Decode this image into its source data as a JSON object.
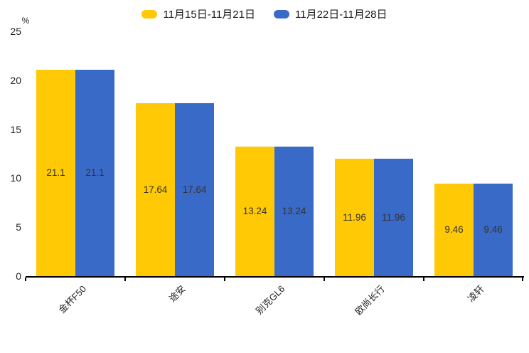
{
  "chart_data": {
    "type": "bar",
    "title": "",
    "categories": [
      "金杯F50",
      "途安",
      "别克GL6",
      "欧尚长行",
      "凌轩"
    ],
    "series": [
      {
        "name": "11月15日-11月21日",
        "color": "#FFC905",
        "values": [
          21.1,
          17.64,
          13.24,
          11.96,
          9.46
        ]
      },
      {
        "name": "11月22日-11月28日",
        "color": "#3A6AC8",
        "values": [
          21.1,
          17.64,
          13.24,
          11.96,
          9.46
        ]
      }
    ],
    "xlabel": "",
    "ylabel": "%",
    "ylim": [
      0,
      25
    ],
    "yticks": [
      0,
      5,
      10,
      15,
      20,
      25
    ],
    "legend_position": "top",
    "grid": false,
    "bar_labels_shown": true,
    "x_label_rotation_deg": 45,
    "colors": {
      "background": "#ffffff",
      "axis": "#000000",
      "tick_text": "#222222",
      "bar_label_text": "#333333",
      "legend_text": "#1a1a1a"
    }
  }
}
